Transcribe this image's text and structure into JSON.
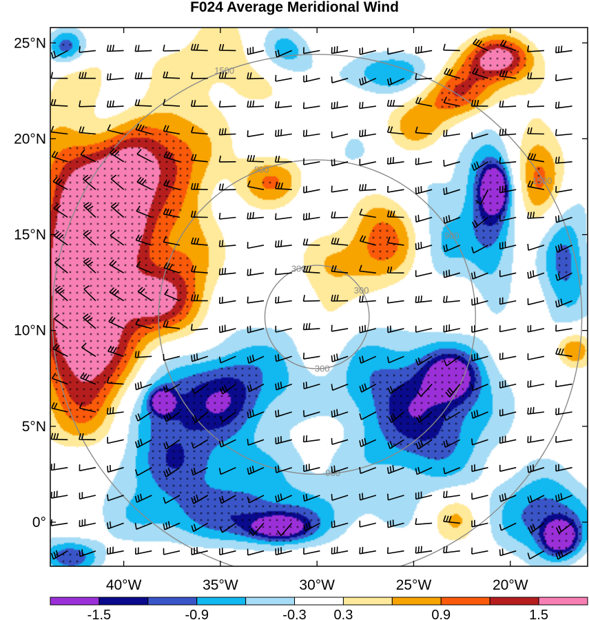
{
  "chart_data": {
    "type": "heatmap",
    "title": "F024 Average Meridional Wind",
    "x_ticks": [
      {
        "value": -40,
        "label": "40°W"
      },
      {
        "value": -35,
        "label": "35°W"
      },
      {
        "value": -30,
        "label": "30°W"
      },
      {
        "value": -25,
        "label": "25°W"
      },
      {
        "value": -20,
        "label": "20°W"
      }
    ],
    "y_ticks": [
      {
        "value": 25,
        "label": "25°N"
      },
      {
        "value": 20,
        "label": "20°N"
      },
      {
        "value": 15,
        "label": "15°N"
      },
      {
        "value": 10,
        "label": "10°N"
      },
      {
        "value": 5,
        "label": "5°N"
      },
      {
        "value": 0,
        "label": "0°"
      }
    ],
    "xlim": [
      -43.8,
      -16.0
    ],
    "ylim": [
      -2.3,
      25.8
    ],
    "colorbar": {
      "levels": [
        -1.8,
        -1.5,
        -1.2,
        -0.9,
        -0.6,
        -0.3,
        0.3,
        0.6,
        0.9,
        1.2,
        1.5,
        1.8
      ],
      "labeled_levels": [
        {
          "value": -1.5,
          "label": "-1.5"
        },
        {
          "value": -0.9,
          "label": "-0.9"
        },
        {
          "value": -0.3,
          "label": "-0.3"
        },
        {
          "value": 0.3,
          "label": "0.3"
        },
        {
          "value": 0.9,
          "label": "0.9"
        },
        {
          "value": 1.5,
          "label": "1.5"
        }
      ],
      "colors": [
        "#9b30d9",
        "#0a0a8c",
        "#3a55c8",
        "#12b8f0",
        "#a6dcf5",
        "#ffffff",
        "#ffe99a",
        "#f7a300",
        "#fa5a0a",
        "#b61e1e",
        "#f87fb4"
      ]
    },
    "range_rings": {
      "center": [
        -30.0,
        10.7
      ],
      "rings": [
        {
          "radius_deg": 2.7,
          "label": "300"
        },
        {
          "radius_deg": 8.2,
          "label": "900"
        },
        {
          "radius_deg": 13.7,
          "label": "1500"
        }
      ]
    },
    "blobs": [
      {
        "x": -42.4,
        "y": 13.8,
        "v": 1.9,
        "rx": 2.2,
        "ry": 7.5
      },
      {
        "x": -39.9,
        "y": 16.8,
        "v": 1.6,
        "rx": 1.8,
        "ry": 3.2
      },
      {
        "x": -40.8,
        "y": 9.2,
        "v": 1.1,
        "rx": 2.8,
        "ry": 4.8
      },
      {
        "x": -36.9,
        "y": 13.0,
        "v": 0.9,
        "rx": 1.8,
        "ry": 4.5
      },
      {
        "x": -37.8,
        "y": 19.3,
        "v": 1.0,
        "rx": 2.6,
        "ry": 2.3
      },
      {
        "x": -32.2,
        "y": 17.8,
        "v": 1.0,
        "rx": 1.9,
        "ry": 1.4
      },
      {
        "x": -26.6,
        "y": 15.3,
        "v": 1.05,
        "rx": 1.9,
        "ry": 2.3
      },
      {
        "x": -29.6,
        "y": 10.4,
        "v": 0.55,
        "rx": 1.4,
        "ry": 3.6
      },
      {
        "x": -28.0,
        "y": 13.6,
        "v": 0.45,
        "rx": 2.5,
        "ry": 1.6
      },
      {
        "x": -22.5,
        "y": 22.6,
        "v": 1.3,
        "rx": 2.4,
        "ry": 1.5
      },
      {
        "x": -20.6,
        "y": 24.2,
        "v": 1.7,
        "rx": 1.7,
        "ry": 1.1
      },
      {
        "x": -24.8,
        "y": 20.6,
        "v": 0.8,
        "rx": 1.8,
        "ry": 1.5
      },
      {
        "x": -18.5,
        "y": 18.1,
        "v": 1.0,
        "rx": 1.4,
        "ry": 2.8
      },
      {
        "x": -16.8,
        "y": 9.0,
        "v": 1.0,
        "rx": 1.0,
        "ry": 1.0
      },
      {
        "x": -33.8,
        "y": 24.0,
        "v": 0.5,
        "rx": 5.5,
        "ry": 2.5
      },
      {
        "x": -22.8,
        "y": 0.2,
        "v": 0.7,
        "rx": 1.4,
        "ry": 1.3
      },
      {
        "x": -29.8,
        "y": 4.7,
        "v": 0.4,
        "rx": 1.0,
        "ry": 0.8
      },
      {
        "x": -38.6,
        "y": 11.6,
        "v": 1.0,
        "rx": 1.6,
        "ry": 1.5
      },
      {
        "x": -23.7,
        "y": 11.2,
        "v": 0.35,
        "rx": 2.5,
        "ry": 1.5
      },
      {
        "x": -26.1,
        "y": 23.4,
        "v": -1.0,
        "rx": 3.2,
        "ry": 1.2
      },
      {
        "x": -31.6,
        "y": 24.6,
        "v": -1.1,
        "rx": 1.6,
        "ry": 1.4
      },
      {
        "x": -43.0,
        "y": 24.8,
        "v": -1.2,
        "rx": 1.1,
        "ry": 1.0
      },
      {
        "x": -21.0,
        "y": 16.5,
        "v": -1.25,
        "rx": 1.3,
        "ry": 4.2
      },
      {
        "x": -20.8,
        "y": 17.4,
        "v": -1.7,
        "rx": 0.6,
        "ry": 1.0
      },
      {
        "x": -17.2,
        "y": 13.6,
        "v": -1.0,
        "rx": 1.3,
        "ry": 3.4
      },
      {
        "x": -37.8,
        "y": 5.7,
        "v": -1.2,
        "rx": 2.5,
        "ry": 2.9
      },
      {
        "x": -38.0,
        "y": 6.3,
        "v": -1.6,
        "rx": 0.6,
        "ry": 0.6
      },
      {
        "x": -34.6,
        "y": 6.4,
        "v": -0.9,
        "rx": 2.0,
        "ry": 2.2
      },
      {
        "x": -24.4,
        "y": 5.3,
        "v": -1.2,
        "rx": 3.2,
        "ry": 3.3
      },
      {
        "x": -23.0,
        "y": 7.6,
        "v": -1.3,
        "rx": 1.3,
        "ry": 1.2
      },
      {
        "x": -34.3,
        "y": 0.4,
        "v": -1.0,
        "rx": 6.5,
        "ry": 1.6
      },
      {
        "x": -32.0,
        "y": -0.3,
        "v": -1.5,
        "rx": 1.6,
        "ry": 0.7
      },
      {
        "x": -18.2,
        "y": 0.3,
        "v": -1.1,
        "rx": 2.5,
        "ry": 2.2
      },
      {
        "x": -17.4,
        "y": -0.8,
        "v": -1.7,
        "rx": 0.9,
        "ry": 0.9
      },
      {
        "x": -42.8,
        "y": -1.8,
        "v": -1.1,
        "rx": 1.6,
        "ry": 0.9
      },
      {
        "x": -30.0,
        "y": 7.8,
        "v": -0.6,
        "rx": 8.5,
        "ry": 3.0
      },
      {
        "x": -36.5,
        "y": 2.8,
        "v": -0.6,
        "rx": 7.0,
        "ry": 1.6
      },
      {
        "x": -27.8,
        "y": 18.0,
        "v": -0.35,
        "rx": 4.5,
        "ry": 3.2
      },
      {
        "x": -23.5,
        "y": 14.8,
        "v": -0.55,
        "rx": 1.4,
        "ry": 3.2
      },
      {
        "x": -41.0,
        "y": 20.8,
        "v": -0.55,
        "rx": 1.8,
        "ry": 1.8
      }
    ]
  }
}
